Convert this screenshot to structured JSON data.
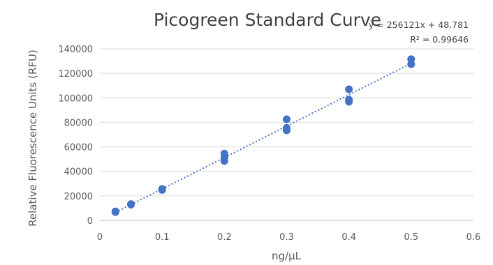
{
  "chart_data": {
    "type": "scatter",
    "title": "Picogreen Standard Curve",
    "xlabel": "ng/µL",
    "ylabel": "Relative Fluorescence Units (RFU)",
    "xlim": [
      0,
      0.6
    ],
    "ylim": [
      0,
      140000
    ],
    "x_ticks": [
      "0",
      "0.1",
      "0.2",
      "0.3",
      "0.4",
      "0.5",
      "0.6"
    ],
    "y_ticks": [
      "0",
      "20000",
      "40000",
      "60000",
      "80000",
      "100000",
      "120000",
      "140000"
    ],
    "grid": "horizontal",
    "legend": "none",
    "series": [
      {
        "color": "#4472c4",
        "points": [
          {
            "x": 0.025,
            "y": 6800
          },
          {
            "x": 0.025,
            "y": 7300
          },
          {
            "x": 0.05,
            "y": 12800
          },
          {
            "x": 0.05,
            "y": 13300
          },
          {
            "x": 0.1,
            "y": 24800
          },
          {
            "x": 0.1,
            "y": 25600
          },
          {
            "x": 0.2,
            "y": 48500
          },
          {
            "x": 0.2,
            "y": 51000
          },
          {
            "x": 0.2,
            "y": 54500
          },
          {
            "x": 0.3,
            "y": 73500
          },
          {
            "x": 0.3,
            "y": 75500
          },
          {
            "x": 0.3,
            "y": 82500
          },
          {
            "x": 0.4,
            "y": 96800
          },
          {
            "x": 0.4,
            "y": 98500
          },
          {
            "x": 0.4,
            "y": 107000
          },
          {
            "x": 0.5,
            "y": 127500
          },
          {
            "x": 0.5,
            "y": 131500
          }
        ]
      }
    ],
    "trendline": {
      "type": "linear",
      "slope": 256121,
      "intercept": 48.781,
      "x_range": [
        0.025,
        0.5
      ],
      "color": "#4472c4",
      "style": "dotted",
      "equation_text": "y = 256121x + 48.781",
      "r2_text": "R² = 0.99646"
    }
  }
}
